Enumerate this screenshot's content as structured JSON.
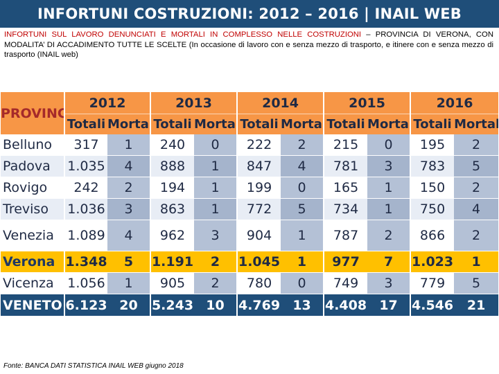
{
  "title": "INFORTUNI COSTRUZIONI: 2012 – 2016 | INAIL WEB",
  "subtitle": {
    "red_part": "INFORTUNI SUL LAVORO DENUNCIATI E MORTALI IN COMPLESSO NELLE COSTRUZIONI",
    "black_part": " – PROVINCIA DI VERONA, CON MODALITA’ DI ACCADIMENTO TUTTE LE SCELTE (In occasione di lavoro con e senza mezzo di trasporto, e itinere con e senza mezzo di trasporto (INAIL web)"
  },
  "table": {
    "province_header": "PROVINCIA",
    "years": [
      "2012",
      "2013",
      "2014",
      "2015",
      "2016"
    ],
    "sub_headers": {
      "totali": "Totali",
      "mortali": "Mortali"
    },
    "rows": [
      {
        "province": "Belluno",
        "values": [
          "317",
          "1",
          "240",
          "0",
          "222",
          "2",
          "215",
          "0",
          "195",
          "2"
        ]
      },
      {
        "province": "Padova",
        "values": [
          "1.035",
          "4",
          "888",
          "1",
          "847",
          "4",
          "781",
          "3",
          "783",
          "5"
        ]
      },
      {
        "province": "Rovigo",
        "values": [
          "242",
          "2",
          "194",
          "1",
          "199",
          "0",
          "165",
          "1",
          "150",
          "2"
        ]
      },
      {
        "province": "Treviso",
        "values": [
          "1.036",
          "3",
          "863",
          "1",
          "772",
          "5",
          "734",
          "1",
          "750",
          "4"
        ]
      },
      {
        "province": "Venezia",
        "values": [
          "1.089",
          "4",
          "962",
          "3",
          "904",
          "1",
          "787",
          "2",
          "866",
          "2"
        ]
      },
      {
        "province": "Verona",
        "values": [
          "1.348",
          "5",
          "1.191",
          "2",
          "1.045",
          "1",
          "977",
          "7",
          "1.023",
          "1"
        ]
      },
      {
        "province": "Vicenza",
        "values": [
          "1.056",
          "1",
          "905",
          "2",
          "780",
          "0",
          "749",
          "3",
          "779",
          "5"
        ]
      }
    ],
    "total_row": {
      "province": "VENETO",
      "values": [
        "6.123",
        "20",
        "5.243",
        "10",
        "4.769",
        "13",
        "4.408",
        "17",
        "4.546",
        "21"
      ]
    }
  },
  "source": "Fonte: BANCA DATI STATISTICA INAIL WEB giugno 2018",
  "colors": {
    "title_bg": "#1f4e79",
    "header_bg": "#f79646",
    "highlight": "#ffc000",
    "total_bg": "#1f4e79"
  }
}
